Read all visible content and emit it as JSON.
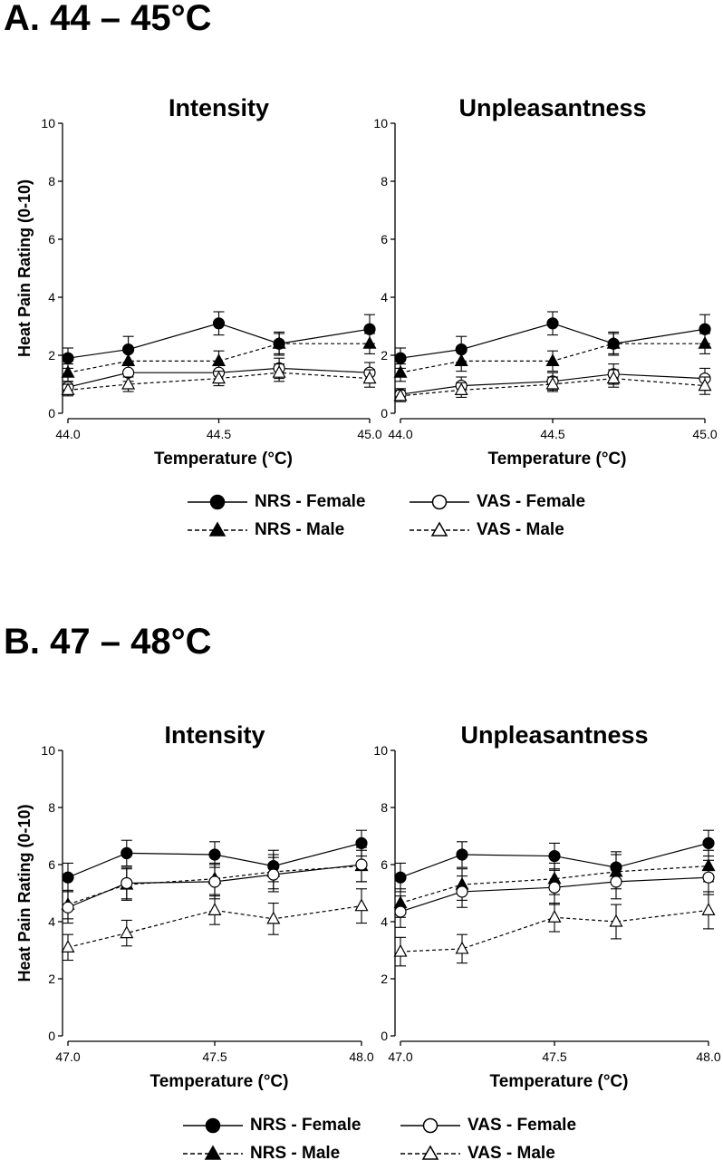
{
  "sections": [
    {
      "title": "A. 44 – 45°C"
    },
    {
      "title": "B. 47 – 48°C"
    }
  ],
  "legend": {
    "nrs_female": "NRS - Female",
    "nrs_male": "NRS - Male",
    "vas_female": "VAS - Female",
    "vas_male": "VAS - Male"
  },
  "series_style": {
    "NRS - Female": {
      "marker": "circle",
      "fill": "#000000",
      "dash": "solid"
    },
    "NRS - Male": {
      "marker": "triangle",
      "fill": "#000000",
      "dash": "dashed"
    },
    "VAS - Female": {
      "marker": "circle",
      "fill": "#ffffff",
      "dash": "solid"
    },
    "VAS - Male": {
      "marker": "triangle",
      "fill": "#ffffff",
      "dash": "dashed"
    }
  },
  "chart_data": [
    {
      "type": "line",
      "title": "Intensity",
      "xlabel": "Temperature (°C)",
      "ylabel": "Heat Pain Rating (0-10)",
      "xlim": [
        44.0,
        45.0
      ],
      "ylim": [
        0,
        10
      ],
      "xticks": [
        "44.0",
        "44.5",
        "45.0"
      ],
      "yticks": [
        "0",
        "2",
        "4",
        "6",
        "8",
        "10"
      ],
      "x": [
        44.0,
        44.2,
        44.5,
        44.7,
        45.0
      ],
      "series": [
        {
          "name": "NRS - Female",
          "values": [
            1.9,
            2.2,
            3.1,
            2.4,
            2.9
          ],
          "err": [
            0.35,
            0.45,
            0.4,
            0.4,
            0.5
          ]
        },
        {
          "name": "NRS - Male",
          "values": [
            1.4,
            1.8,
            1.8,
            2.4,
            2.4
          ],
          "err": [
            0.3,
            0.35,
            0.35,
            0.35,
            0.35
          ]
        },
        {
          "name": "VAS - Female",
          "values": [
            0.9,
            1.4,
            1.4,
            1.55,
            1.4
          ],
          "err": [
            0.2,
            0.3,
            0.3,
            0.35,
            0.35
          ]
        },
        {
          "name": "VAS - Male",
          "values": [
            0.8,
            1.0,
            1.2,
            1.4,
            1.2
          ],
          "err": [
            0.2,
            0.25,
            0.25,
            0.3,
            0.3
          ]
        }
      ]
    },
    {
      "type": "line",
      "title": "Unpleasantness",
      "xlabel": "Temperature (°C)",
      "ylabel": "",
      "xlim": [
        44.0,
        45.0
      ],
      "ylim": [
        0,
        10
      ],
      "xticks": [
        "44.0",
        "44.5",
        "45.0"
      ],
      "yticks": [
        "0",
        "2",
        "4",
        "6",
        "8",
        "10"
      ],
      "x": [
        44.0,
        44.2,
        44.5,
        44.7,
        45.0
      ],
      "series": [
        {
          "name": "NRS - Female",
          "values": [
            1.9,
            2.2,
            3.1,
            2.4,
            2.9
          ],
          "err": [
            0.35,
            0.45,
            0.4,
            0.4,
            0.5
          ]
        },
        {
          "name": "NRS - Male",
          "values": [
            1.4,
            1.8,
            1.8,
            2.4,
            2.4
          ],
          "err": [
            0.3,
            0.35,
            0.35,
            0.35,
            0.35
          ]
        },
        {
          "name": "VAS - Female",
          "values": [
            0.65,
            0.95,
            1.1,
            1.35,
            1.2
          ],
          "err": [
            0.2,
            0.3,
            0.3,
            0.35,
            0.35
          ]
        },
        {
          "name": "VAS - Male",
          "values": [
            0.6,
            0.8,
            1.0,
            1.2,
            0.95
          ],
          "err": [
            0.2,
            0.25,
            0.25,
            0.3,
            0.3
          ]
        }
      ]
    },
    {
      "type": "line",
      "title": "Intensity",
      "xlabel": "Temperature (°C)",
      "ylabel": "Heat Pain Rating (0-10)",
      "xlim": [
        47.0,
        48.0
      ],
      "ylim": [
        0,
        10
      ],
      "xticks": [
        "47.0",
        "47.5",
        "48.0"
      ],
      "yticks": [
        "0",
        "2",
        "4",
        "6",
        "8",
        "10"
      ],
      "x": [
        47.0,
        47.2,
        47.5,
        47.7,
        48.0
      ],
      "series": [
        {
          "name": "NRS - Female",
          "values": [
            5.55,
            6.4,
            6.35,
            5.95,
            6.75
          ],
          "err": [
            0.5,
            0.45,
            0.45,
            0.55,
            0.45
          ]
        },
        {
          "name": "NRS - Male",
          "values": [
            4.6,
            5.3,
            5.5,
            5.75,
            5.95
          ],
          "err": [
            0.5,
            0.55,
            0.55,
            0.6,
            0.55
          ]
        },
        {
          "name": "VAS - Female",
          "values": [
            4.5,
            5.35,
            5.4,
            5.65,
            6.0
          ],
          "err": [
            0.55,
            0.55,
            0.6,
            0.6,
            0.6
          ]
        },
        {
          "name": "VAS - Male",
          "values": [
            3.1,
            3.6,
            4.4,
            4.1,
            4.55
          ],
          "err": [
            0.45,
            0.45,
            0.5,
            0.55,
            0.6
          ]
        }
      ]
    },
    {
      "type": "line",
      "title": "Unpleasantness",
      "xlabel": "Temperature (°C)",
      "ylabel": "",
      "xlim": [
        47.0,
        48.0
      ],
      "ylim": [
        0,
        10
      ],
      "xticks": [
        "47.0",
        "47.5",
        "48.0"
      ],
      "yticks": [
        "0",
        "2",
        "4",
        "6",
        "8",
        "10"
      ],
      "x": [
        47.0,
        47.2,
        47.5,
        47.7,
        48.0
      ],
      "series": [
        {
          "name": "NRS - Female",
          "values": [
            5.55,
            6.35,
            6.3,
            5.9,
            6.75
          ],
          "err": [
            0.5,
            0.45,
            0.45,
            0.55,
            0.45
          ]
        },
        {
          "name": "NRS - Male",
          "values": [
            4.65,
            5.3,
            5.5,
            5.75,
            5.95
          ],
          "err": [
            0.5,
            0.55,
            0.55,
            0.6,
            0.55
          ]
        },
        {
          "name": "VAS - Female",
          "values": [
            4.35,
            5.05,
            5.2,
            5.4,
            5.55
          ],
          "err": [
            0.55,
            0.55,
            0.6,
            0.6,
            0.6
          ]
        },
        {
          "name": "VAS - Male",
          "values": [
            2.95,
            3.05,
            4.15,
            4.0,
            4.4
          ],
          "err": [
            0.5,
            0.5,
            0.5,
            0.6,
            0.65
          ]
        }
      ]
    }
  ]
}
